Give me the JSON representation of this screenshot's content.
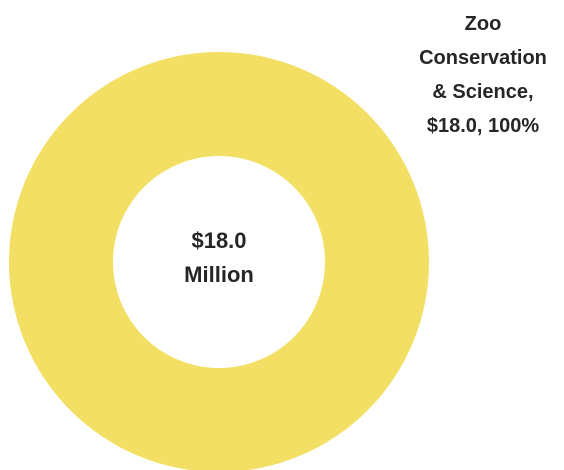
{
  "chart_data": {
    "type": "pie",
    "variant": "donut",
    "categories": [
      "Zoo Conservation & Science"
    ],
    "values": [
      18.0
    ],
    "percentages": [
      100
    ],
    "colors": [
      "#F2DF63"
    ],
    "center_label": {
      "line1": "$18.0",
      "line2": "Million"
    },
    "data_labels": [
      {
        "lines": [
          "Zoo",
          "Conservation",
          "& Science,",
          "$18.0, 100%"
        ]
      }
    ],
    "legend": "none",
    "grid": false
  }
}
